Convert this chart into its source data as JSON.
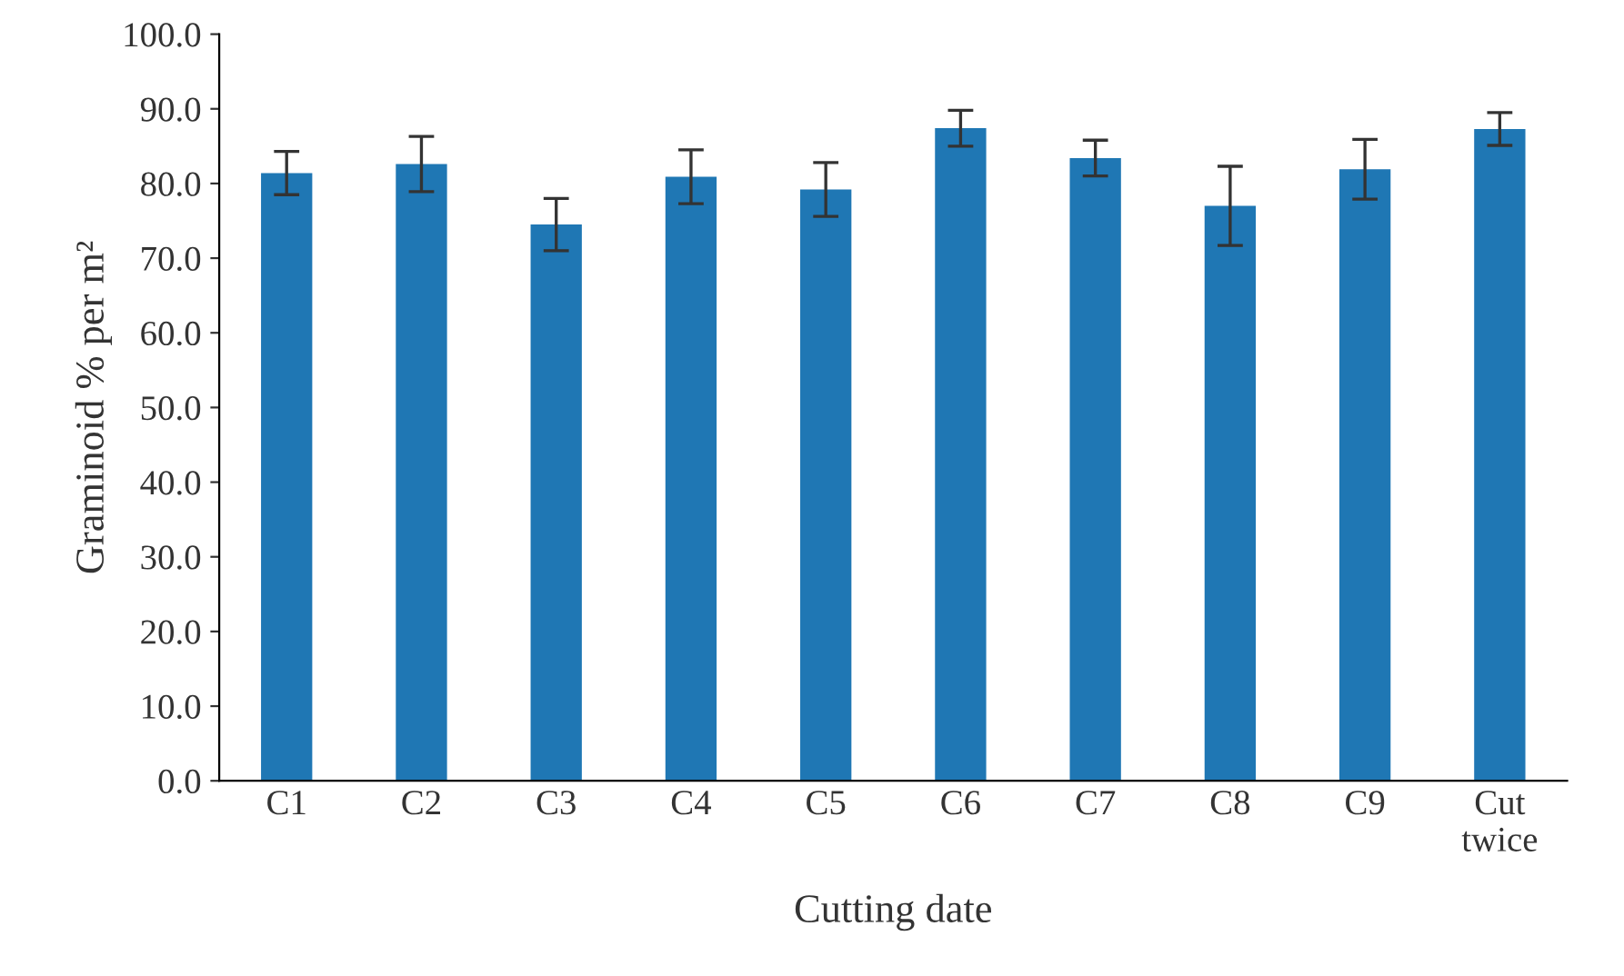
{
  "chart_data": {
    "type": "bar",
    "xlabel": "Cutting date",
    "ylabel": "Graminoid % per m²",
    "categories": [
      "C1",
      "C2",
      "C3",
      "C4",
      "C5",
      "C6",
      "C7",
      "C8",
      "C9",
      "Cut\ntwice"
    ],
    "series": [
      {
        "color": "#1f77b4",
        "values": [
          81.4,
          82.6,
          74.5,
          80.9,
          79.2,
          87.4,
          83.4,
          77.0,
          81.9,
          87.3
        ],
        "errors": [
          2.9,
          3.7,
          3.5,
          3.6,
          3.6,
          2.4,
          2.4,
          5.3,
          4.0,
          2.2
        ]
      }
    ],
    "ylim": [
      0,
      100
    ],
    "yticks": [
      {
        "value": 0,
        "label": "0.0"
      },
      {
        "value": 10,
        "label": "10.0"
      },
      {
        "value": 20,
        "label": "20.0"
      },
      {
        "value": 30,
        "label": "30.0"
      },
      {
        "value": 40,
        "label": "40.0"
      },
      {
        "value": 50,
        "label": "50.0"
      },
      {
        "value": 60,
        "label": "60.0"
      },
      {
        "value": 70,
        "label": "70.0"
      },
      {
        "value": 80,
        "label": "80.0"
      },
      {
        "value": 90,
        "label": "90.0"
      },
      {
        "value": 100,
        "label": "100.0"
      }
    ],
    "grid": false
  }
}
